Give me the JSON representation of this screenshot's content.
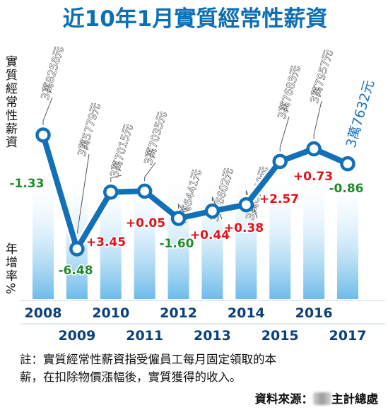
{
  "chart_data": {
    "type": "line",
    "title": "近10年1月實質經常性薪資",
    "ylabel_top": "實質經常性薪資",
    "ylabel_bottom": "年增率%",
    "x": [
      2008,
      2009,
      2010,
      2011,
      2012,
      2013,
      2014,
      2015,
      2016,
      2017
    ],
    "x_labels_top": [
      "2008",
      "2010",
      "2012",
      "2014",
      "2016"
    ],
    "x_labels_bottom": [
      "2009",
      "2011",
      "2013",
      "2015",
      "2017"
    ],
    "salary_values": [
      38258,
      35779,
      37015,
      37035,
      36441,
      36602,
      36740,
      37683,
      37957,
      37632
    ],
    "salary_labels": [
      "3萬8258元",
      "3萬5779元",
      "3萬7015元",
      "3萬7035元",
      "3萬6441元",
      "3萬6602元",
      "3萬6740元",
      "3萬7683元",
      "3萬7957元",
      "3萬7632元"
    ],
    "growth_rates": [
      -1.33,
      -6.48,
      3.45,
      0.05,
      -1.6,
      0.44,
      0.38,
      2.57,
      0.73,
      -0.86
    ],
    "growth_labels": [
      "-1.33",
      "-6.48",
      "+3.45",
      "+0.05",
      "-1.60",
      "+0.44",
      "+0.38",
      "+2.57",
      "+0.73",
      "-0.86"
    ],
    "highlight_index": 9,
    "colors": {
      "title": "#0c6fb4",
      "line": "#1270b8",
      "negative": "#1f8a2a",
      "positive": "#e0141b",
      "bar": "#7cc3ee",
      "year_text": "#0a3f7a",
      "highlight_label": "#1a73c0"
    }
  },
  "footer": {
    "note_line1": "註：實質經常性薪資指受僱員工每月固定領取的本",
    "note_line2": "薪，在扣除物價漲幅後，實質獲得的收入。",
    "source_prefix": "資料來源：",
    "source_suffix": "主計總處"
  }
}
